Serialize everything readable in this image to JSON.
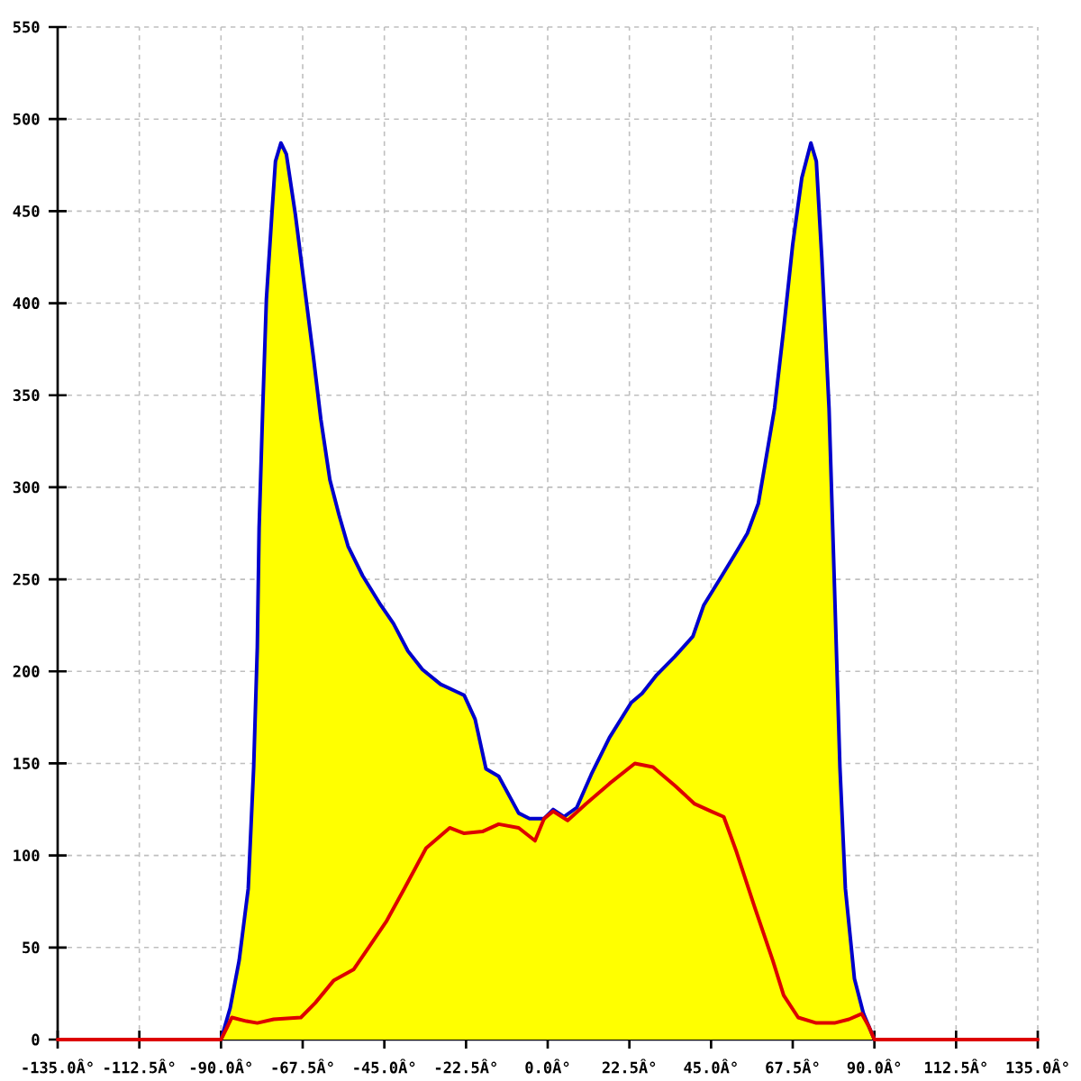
{
  "chart_data": {
    "type": "area",
    "xlim": [
      -135,
      135
    ],
    "ylim": [
      0,
      550
    ],
    "xticks": [
      {
        "value": -135,
        "label": "-135.0Â°"
      },
      {
        "value": -112.5,
        "label": "-112.5Â°"
      },
      {
        "value": -90,
        "label": "-90.0Â°"
      },
      {
        "value": -67.5,
        "label": "-67.5Â°"
      },
      {
        "value": -45,
        "label": "-45.0Â°"
      },
      {
        "value": -22.5,
        "label": "-22.5Â°"
      },
      {
        "value": 0,
        "label": "0.0Â°"
      },
      {
        "value": 22.5,
        "label": "22.5Â°"
      },
      {
        "value": 45,
        "label": "45.0Â°"
      },
      {
        "value": 67.5,
        "label": "67.5Â°"
      },
      {
        "value": 90,
        "label": "90.0Â°"
      },
      {
        "value": 112.5,
        "label": "112.5Â°"
      },
      {
        "value": 135,
        "label": "135.0Â°"
      }
    ],
    "yticks": [
      0,
      50,
      100,
      150,
      200,
      250,
      300,
      350,
      400,
      450,
      500,
      550
    ],
    "grid": true,
    "series": [
      {
        "color": "#ffff00",
        "x": [
          -90,
          -87.5,
          -85,
          -82.5,
          -81,
          -80,
          -79.5,
          -78.5,
          -77.5,
          -76,
          -75,
          -73.5,
          -72,
          -69.5,
          -67,
          -64.5,
          -62.5,
          -60,
          -57.5,
          -55,
          -51,
          -46,
          -42.5,
          -38.5,
          -34.5,
          -29.5,
          -23,
          -20,
          -17,
          -13.5,
          -8,
          -5,
          -1,
          1.5,
          4.5,
          8,
          12,
          17,
          23,
          26,
          30,
          35,
          40,
          43,
          48,
          52,
          55,
          58,
          60,
          62.5,
          65,
          67.5,
          70,
          72.5,
          74,
          75.5,
          77.5,
          79,
          80.5,
          82,
          84.5,
          87,
          90
        ],
        "values": [
          0,
          17,
          43,
          82,
          148,
          213,
          278,
          343,
          402,
          448,
          477,
          487,
          481,
          448,
          409,
          370,
          337,
          304,
          285,
          268,
          252,
          236,
          226,
          211,
          201,
          193,
          187,
          174,
          147,
          143,
          123,
          120,
          120,
          125,
          121,
          126,
          144,
          164,
          183,
          188,
          198,
          208,
          219,
          236,
          252,
          265,
          275,
          291,
          314,
          343,
          386,
          432,
          468,
          487,
          477,
          425,
          343,
          246,
          148,
          82,
          33,
          14,
          0
        ]
      },
      {
        "type": "line",
        "color": "#dd0000",
        "x": [
          -135,
          -90,
          -87,
          -83,
          -80,
          -75.5,
          -68,
          -64,
          -59,
          -53.5,
          -49,
          -44.5,
          -39.5,
          -33.5,
          -27,
          -23,
          -18,
          -13.5,
          -8,
          -3.5,
          -1,
          1.5,
          5.5,
          10.5,
          17,
          24,
          29,
          35,
          40.5,
          45,
          48.5,
          52,
          57,
          62,
          65,
          69,
          74,
          79,
          83,
          86.5,
          88.5,
          90,
          135
        ],
        "values": [
          0,
          0,
          12,
          10,
          9,
          11,
          12,
          20,
          32,
          38,
          51,
          64,
          82,
          104,
          115,
          112,
          113,
          117,
          115,
          108,
          120,
          124,
          119,
          128,
          139,
          150,
          148,
          138,
          128,
          124,
          121,
          102,
          72,
          43,
          24,
          12,
          9,
          9,
          11,
          14,
          7,
          0,
          0
        ]
      }
    ]
  }
}
